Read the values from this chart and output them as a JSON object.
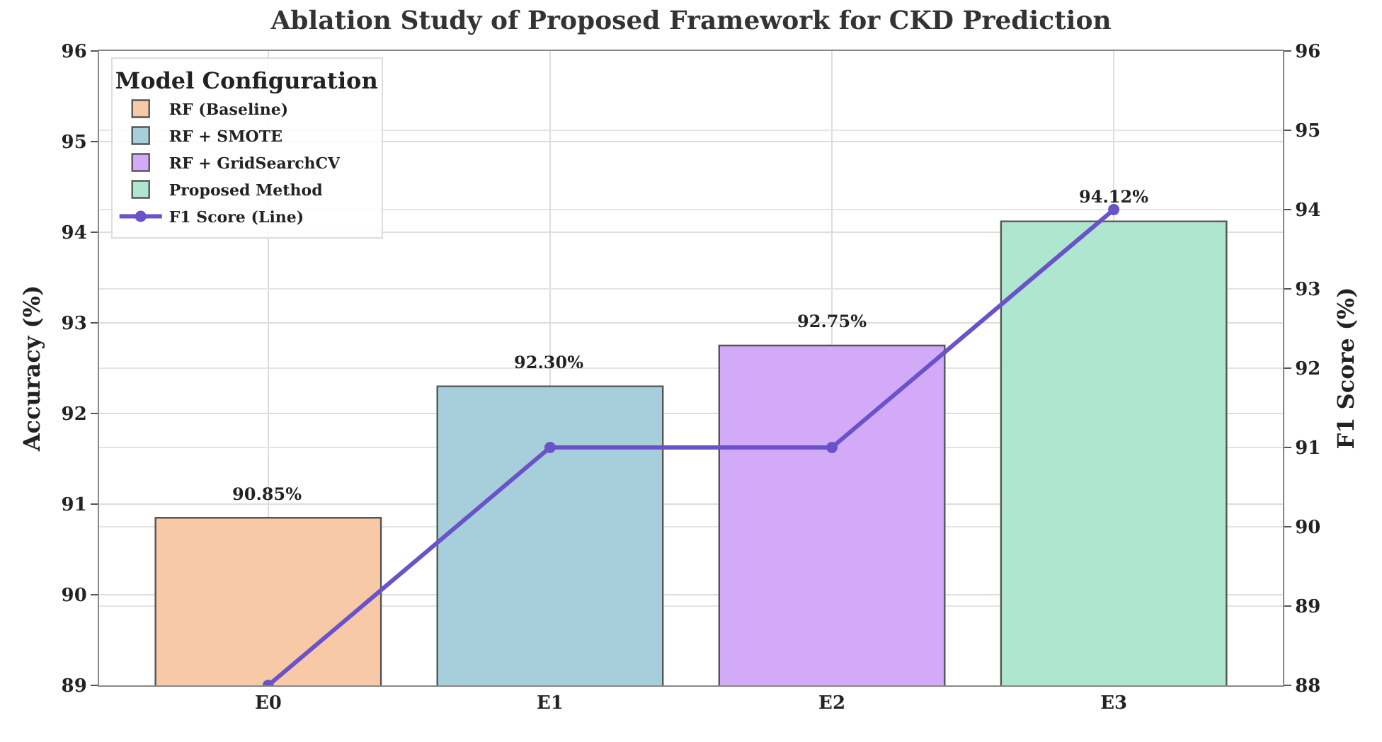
{
  "chart_data": {
    "type": "bar",
    "title": "Ablation Study of Proposed Framework for CKD Prediction",
    "categories": [
      "E0",
      "E1",
      "E2",
      "E3"
    ],
    "ylabel": "Accuracy (%)",
    "y2label": "F1 Score (%)",
    "legend_title": "Model Configuration",
    "legend": "top left",
    "grid": true,
    "ylim": [
      89,
      96
    ],
    "yticks": [
      89,
      90,
      91,
      92,
      93,
      94,
      95,
      96
    ],
    "y2lim": [
      88,
      96
    ],
    "y2ticks": [
      88,
      89,
      90,
      91,
      92,
      93,
      94,
      95,
      96
    ],
    "series": [
      {
        "name": "RF (Baseline)",
        "color": "#f8c9a6",
        "values": [
          90.85,
          null,
          null,
          null
        ],
        "value_labels": [
          "90.85%",
          null,
          null,
          null
        ]
      },
      {
        "name": "RF + SMOTE",
        "color": "#a7cfdb",
        "values": [
          null,
          92.3,
          null,
          null
        ],
        "value_labels": [
          null,
          "92.30%",
          null,
          null
        ]
      },
      {
        "name": "RF + GridSearchCV",
        "color": "#d3aaf8",
        "values": [
          null,
          null,
          92.75,
          null
        ],
        "value_labels": [
          null,
          null,
          "92.75%",
          null
        ]
      },
      {
        "name": "Proposed Method",
        "color": "#aee6d0",
        "values": [
          null,
          null,
          null,
          94.12
        ],
        "value_labels": [
          null,
          null,
          null,
          "94.12%"
        ]
      },
      {
        "name": "F1 Score (Line)",
        "type": "line",
        "axis": "y2",
        "color": "#6a52c9",
        "marker": "circle",
        "line_style": "solid",
        "values": [
          88,
          91,
          91,
          94
        ]
      }
    ]
  }
}
